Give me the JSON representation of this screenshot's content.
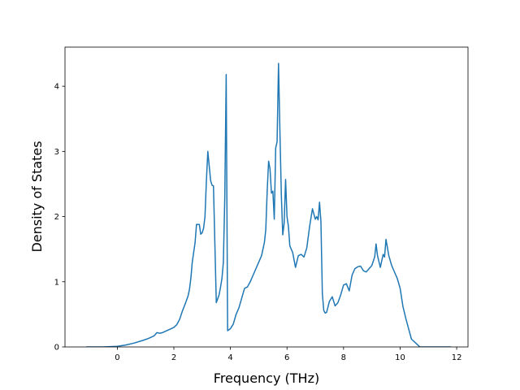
{
  "chart_data": {
    "type": "line",
    "xlabel": "Frequency (THz)",
    "ylabel": "Density of States",
    "xlim": [
      -1.85,
      12.4
    ],
    "ylim": [
      0,
      4.6
    ],
    "xticks": [
      0,
      2,
      4,
      6,
      8,
      10,
      12
    ],
    "yticks": [
      0,
      1,
      2,
      3,
      4
    ],
    "grid": false,
    "color": "#1f77b4",
    "series": [
      {
        "x": [
          -1.1,
          -0.5,
          0.0,
          0.3,
          0.6,
          0.9,
          1.1,
          1.3,
          1.4,
          1.5,
          1.6,
          1.8,
          2.0,
          2.1,
          2.2,
          2.3,
          2.4,
          2.45,
          2.5,
          2.55,
          2.6,
          2.65,
          2.7,
          2.75,
          2.8,
          2.9,
          2.95,
          3.0,
          3.05,
          3.1,
          3.15,
          3.2,
          3.3,
          3.35,
          3.4,
          3.5,
          3.6,
          3.65,
          3.7,
          3.75,
          3.8,
          3.85,
          3.9,
          4.0,
          4.1,
          4.2,
          4.3,
          4.4,
          4.5,
          4.6,
          4.7,
          4.8,
          4.9,
          5.0,
          5.1,
          5.15,
          5.2,
          5.25,
          5.3,
          5.35,
          5.4,
          5.45,
          5.5,
          5.55,
          5.6,
          5.65,
          5.7,
          5.75,
          5.8,
          5.85,
          5.9,
          5.95,
          6.0,
          6.05,
          6.1,
          6.2,
          6.3,
          6.4,
          6.5,
          6.6,
          6.7,
          6.8,
          6.9,
          7.0,
          7.05,
          7.1,
          7.15,
          7.2,
          7.25,
          7.3,
          7.35,
          7.4,
          7.5,
          7.6,
          7.7,
          7.8,
          7.9,
          8.0,
          8.1,
          8.2,
          8.3,
          8.4,
          8.5,
          8.6,
          8.7,
          8.8,
          8.9,
          9.0,
          9.1,
          9.15,
          9.2,
          9.3,
          9.4,
          9.45,
          9.5,
          9.6,
          9.7,
          9.8,
          9.9,
          10.0,
          10.1,
          10.2,
          10.3,
          10.4,
          10.5,
          10.6,
          10.7,
          11.0,
          11.5,
          11.8
        ],
        "y": [
          0.0,
          0.0,
          0.01,
          0.03,
          0.06,
          0.1,
          0.13,
          0.17,
          0.22,
          0.21,
          0.22,
          0.26,
          0.3,
          0.34,
          0.42,
          0.55,
          0.66,
          0.72,
          0.78,
          0.88,
          1.05,
          1.3,
          1.45,
          1.6,
          1.88,
          1.88,
          1.73,
          1.75,
          1.82,
          2.0,
          2.55,
          3.0,
          2.55,
          2.48,
          2.47,
          0.68,
          0.8,
          0.92,
          1.05,
          1.3,
          2.3,
          4.18,
          0.25,
          0.28,
          0.35,
          0.5,
          0.6,
          0.75,
          0.9,
          0.92,
          1.0,
          1.1,
          1.2,
          1.3,
          1.4,
          1.5,
          1.6,
          1.8,
          2.4,
          2.85,
          2.73,
          2.36,
          2.39,
          1.96,
          3.05,
          3.15,
          4.35,
          3.3,
          2.33,
          1.72,
          1.9,
          2.57,
          2.0,
          1.85,
          1.55,
          1.45,
          1.22,
          1.4,
          1.42,
          1.38,
          1.52,
          1.85,
          2.12,
          1.96,
          2.0,
          1.95,
          2.22,
          1.92,
          0.82,
          0.56,
          0.52,
          0.53,
          0.7,
          0.77,
          0.63,
          0.68,
          0.8,
          0.95,
          0.97,
          0.86,
          1.1,
          1.2,
          1.23,
          1.24,
          1.17,
          1.15,
          1.2,
          1.25,
          1.38,
          1.58,
          1.4,
          1.22,
          1.42,
          1.38,
          1.65,
          1.4,
          1.25,
          1.15,
          1.05,
          0.9,
          0.62,
          0.44,
          0.28,
          0.12,
          0.08,
          0.04,
          0.0,
          0.0,
          0.0,
          0.0
        ]
      }
    ]
  }
}
